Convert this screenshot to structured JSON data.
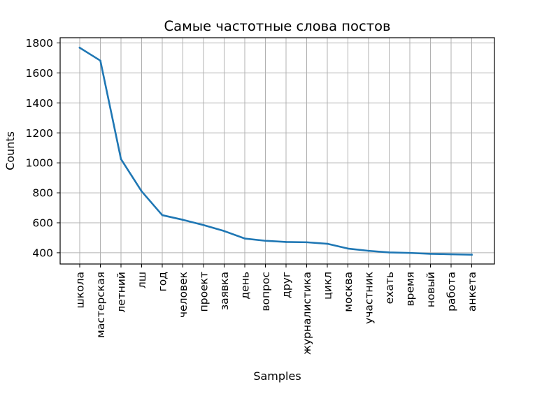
{
  "chart_data": {
    "type": "line",
    "title": "Самые частотные слова постов",
    "xlabel": "Samples",
    "ylabel": "Counts",
    "categories": [
      "школа",
      "мастерская",
      "летний",
      "лш",
      "год",
      "человек",
      "проект",
      "заявка",
      "день",
      "вопрос",
      "друг",
      "журналистика",
      "цикл",
      "москва",
      "участник",
      "ехать",
      "время",
      "новый",
      "работа",
      "анкета"
    ],
    "series": [
      {
        "values": [
          1768,
          1682,
          1025,
          810,
          651,
          620,
          585,
          545,
          495,
          480,
          472,
          470,
          460,
          428,
          413,
          402,
          399,
          393,
          390,
          387
        ]
      }
    ],
    "ylim": [
      325,
      1835
    ],
    "yticks": [
      400,
      600,
      800,
      1000,
      1200,
      1400,
      1600,
      1800
    ],
    "grid": true,
    "colors": {
      "line": "#1f77b4",
      "grid": "#b0b0b0"
    }
  }
}
